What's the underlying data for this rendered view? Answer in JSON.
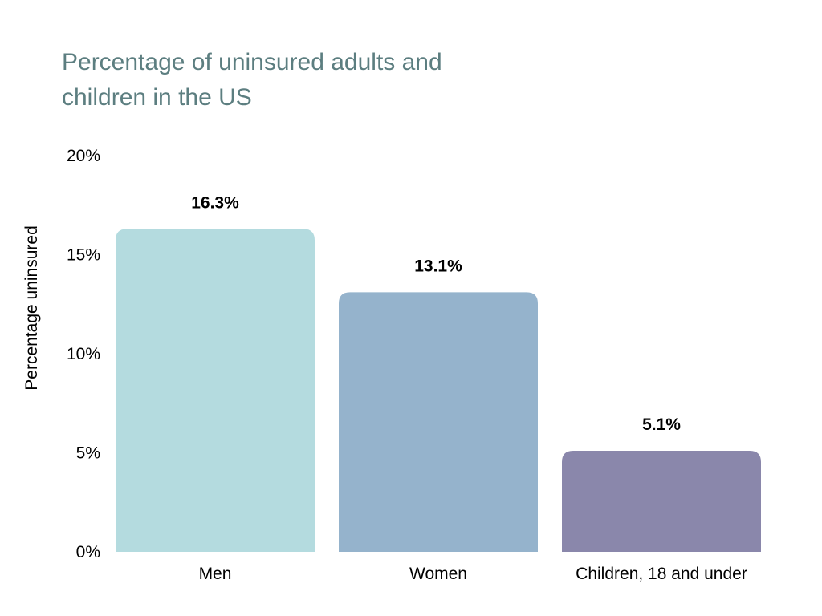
{
  "chart_data": {
    "type": "bar",
    "title": "Percentage of uninsured adults and children in the US",
    "xlabel": "",
    "ylabel": "Percentage uninsured",
    "categories": [
      "Men",
      "Women",
      "Children, 18 and under"
    ],
    "values": [
      16.3,
      13.1,
      5.1
    ],
    "data_labels": [
      "16.3%",
      "13.1%",
      "5.1%"
    ],
    "colors": [
      "#b4dbdf",
      "#95b3cc",
      "#8a87ab"
    ],
    "ylim": [
      0,
      20
    ],
    "yticks": [
      0,
      5,
      10,
      15,
      20
    ],
    "ytick_labels": [
      "0%",
      "5%",
      "10%",
      "15%",
      "20%"
    ],
    "grid": false,
    "legend": "none"
  }
}
